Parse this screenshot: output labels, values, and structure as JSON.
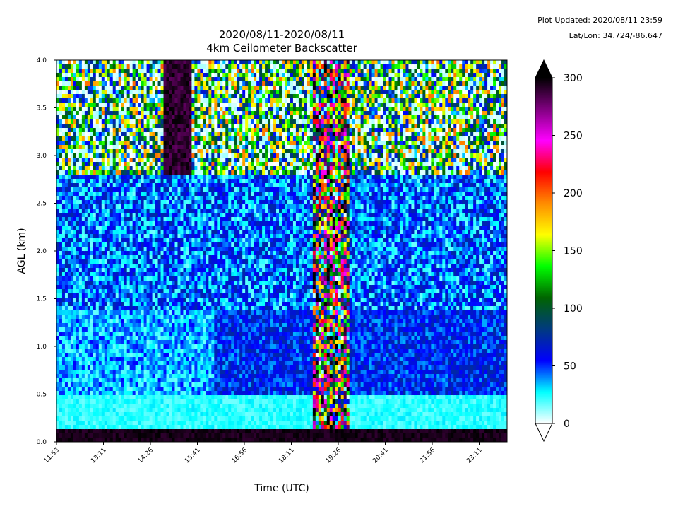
{
  "header": {
    "plot_updated": "Plot Updated: 2020/08/11 23:59",
    "lat_lon": "Lat/Lon: 34.724/-86.647"
  },
  "chart_data": {
    "type": "heatmap",
    "title": "2020/08/11-2020/08/11",
    "subtitle": "4km Ceilometer Backscatter",
    "xlabel": "Time (UTC)",
    "ylabel": "AGL (km)",
    "x_ticks": [
      "11:53",
      "13:11",
      "14:26",
      "15:41",
      "16:56",
      "18:11",
      "19:26",
      "20:41",
      "21:56",
      "23:11"
    ],
    "x_range": [
      "11:53",
      "23:59"
    ],
    "y_ticks": [
      0.0,
      0.5,
      1.0,
      1.5,
      2.0,
      2.5,
      3.0,
      3.5,
      4.0
    ],
    "y_tick_labels": [
      "0.0",
      "0.5",
      "1.0",
      "1.5",
      "2.0",
      "2.5",
      "3.0",
      "3.5",
      "4.0"
    ],
    "ylim": [
      0,
      4.0
    ],
    "colorbar": {
      "range": [
        0,
        300
      ],
      "ticks": [
        0,
        50,
        100,
        150,
        200,
        250,
        300
      ],
      "tick_labels": [
        "0",
        "50",
        "100",
        "150",
        "200",
        "250",
        "300"
      ],
      "extend": "both",
      "colors": [
        "#ffffff",
        "#00ffff",
        "#0000ff",
        "#003a80",
        "#006400",
        "#00ff00",
        "#ffff00",
        "#ff8c00",
        "#ff0000",
        "#ff00ff",
        "#800080",
        "#000000"
      ]
    },
    "grid": false
  }
}
